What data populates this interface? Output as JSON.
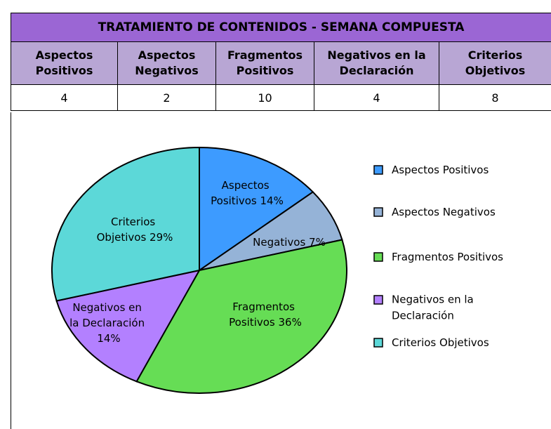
{
  "table": {
    "title": "TRATAMIENTO DE CONTENIDOS - SEMANA COMPUESTA",
    "headers": [
      "Aspectos Positivos",
      "Aspectos Negativos",
      "Fragmentos Positivos",
      "Negativos en la Declaración",
      "Criterios Objetivos"
    ],
    "rows": [
      [
        "4",
        "2",
        "10",
        "4",
        "8"
      ]
    ]
  },
  "chart_data": {
    "type": "pie",
    "categories": [
      "Aspectos Positivos",
      "Aspectos Negativos",
      "Fragmentos Positivos",
      "Negativos en la Declaración",
      "Criterios Objetivos"
    ],
    "values": [
      14,
      7,
      36,
      14,
      29
    ],
    "value_labels": [
      "Aspectos Positivos 14%",
      "Negativos 7%",
      "Fragmentos Positivos 36%",
      "Negativos en la Declaración 14%",
      "Criterios Objetivos 29%"
    ],
    "colors": [
      "#3d9bff",
      "#95b3d7",
      "#66dd55",
      "#b380ff",
      "#5cd8d8"
    ],
    "legend": "right"
  }
}
